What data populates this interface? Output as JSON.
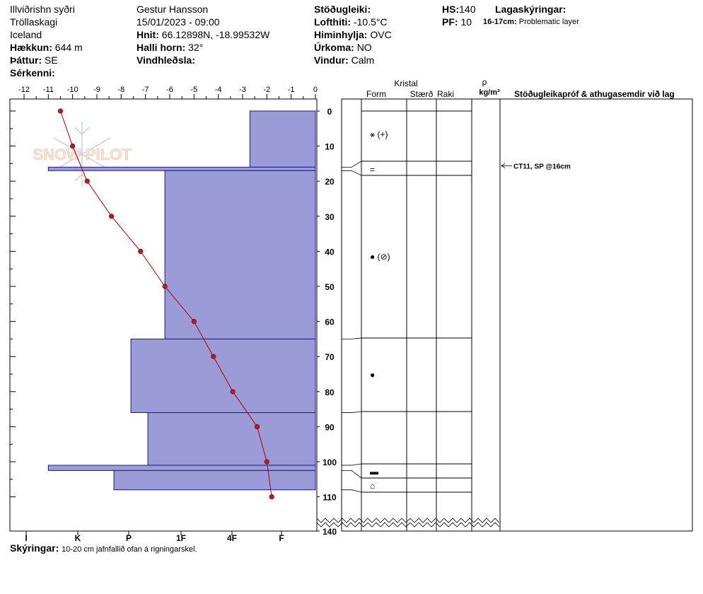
{
  "header": {
    "location": "Illviðrishn syðri",
    "region": "Tröllaskagi",
    "country": "Iceland",
    "elevation_label": "Hækkun:",
    "elevation": "644 m",
    "aspect_label": "Þáttur:",
    "aspect": "SE",
    "features_label": "Sérkenni:",
    "observer": "Gestur Hansson",
    "datetime": "15/01/2023 - 09:00",
    "coords_label": "Hnit:",
    "coords": "66.12898N, -18.99532W",
    "slope_label": "Halli horn:",
    "slope": "32°",
    "wind_loading_label": "Vindhleðsla:",
    "stability_label": "Stöðugleiki:",
    "air_temp_label": "Lofthiti:",
    "air_temp": "-10.5°C",
    "sky_label": "Himinhylja:",
    "sky": "OVC",
    "precip_label": "Úrkoma:",
    "precip": "NO",
    "wind_label": "Vindur:",
    "wind": "Calm",
    "hs_label": "HS:",
    "hs": "140",
    "pf_label": "PF:",
    "pf": "10",
    "layer_notes_label": "Lagaskýringar:",
    "layer_notes_range": "16-17cm:",
    "layer_notes_text": "Problematic layer"
  },
  "footer": {
    "notes_label": "Skýringar:",
    "notes": "10-20 cm jafnfallið ofan á rigningarskel."
  },
  "columns": {
    "crystal": "Kristal",
    "form": "Form",
    "size": "Stærð",
    "wetness": "Raki",
    "rho": "ρ",
    "density_unit": "kg/m³",
    "tests": "Stöðugleikapróf & athugasemdir við lag"
  },
  "watermark": "SNOW PILOT",
  "colors": {
    "hardness_fill": "#9b9bd8",
    "hardness_stroke": "#1a1a8c",
    "temp_line": "#b00000",
    "temp_dot": "#b02020"
  },
  "chart_data": {
    "type": "snow-profile",
    "temp_axis": {
      "ticks": [
        "-12",
        "-11",
        "-10",
        "-9",
        "-8",
        "-7",
        "-6",
        "-5",
        "-4",
        "-3",
        "-2",
        "-1",
        "0"
      ],
      "range": [
        -12,
        0
      ]
    },
    "depth_axis": {
      "ticks": [
        "0",
        "10",
        "20",
        "30",
        "40",
        "50",
        "60",
        "70",
        "80",
        "90",
        "100",
        "110",
        "140"
      ],
      "range_cm": [
        0,
        140
      ],
      "break_between": [
        112,
        140
      ]
    },
    "hardness_axis": {
      "ticks": [
        "I",
        "K",
        "P",
        "1F",
        "4F",
        "F"
      ]
    },
    "temperature_profile": [
      {
        "depth": 0,
        "temp": -10.5
      },
      {
        "depth": 10,
        "temp": -10.0
      },
      {
        "depth": 20,
        "temp": -9.4
      },
      {
        "depth": 30,
        "temp": -8.4
      },
      {
        "depth": 40,
        "temp": -7.2
      },
      {
        "depth": 50,
        "temp": -6.2
      },
      {
        "depth": 60,
        "temp": -5.0
      },
      {
        "depth": 70,
        "temp": -4.2
      },
      {
        "depth": 80,
        "temp": -3.4
      },
      {
        "depth": 90,
        "temp": -2.4
      },
      {
        "depth": 100,
        "temp": -2.0
      },
      {
        "depth": 110,
        "temp": -1.8
      }
    ],
    "layers": [
      {
        "top": 0,
        "bottom": 16,
        "hardness_temp_extent": -2.7,
        "form": "⚹ (+)",
        "form_depth": 7
      },
      {
        "top": 16,
        "bottom": 17,
        "hardness_temp_extent": -11.0,
        "form": "=",
        "form_depth": 16.5
      },
      {
        "top": 17,
        "bottom": 65,
        "hardness_temp_extent": -6.2,
        "form": "● (⊘)",
        "form_depth": 41.5
      },
      {
        "top": 65,
        "bottom": 86,
        "hardness_temp_extent": -7.6,
        "form": "●",
        "form_depth": 75
      },
      {
        "top": 86,
        "bottom": 101,
        "hardness_temp_extent": -6.9,
        "form": "",
        "form_depth": 93
      },
      {
        "top": 101,
        "bottom": 102.5,
        "hardness_temp_extent": -11.0,
        "form": "▬",
        "form_depth": 102.5
      },
      {
        "top": 102.5,
        "bottom": 108,
        "hardness_temp_extent": -8.3,
        "form": "⌂",
        "form_depth": 105.5
      }
    ],
    "stability_tests": [
      {
        "depth": 16,
        "text": "CT11, SP @16cm"
      }
    ]
  }
}
